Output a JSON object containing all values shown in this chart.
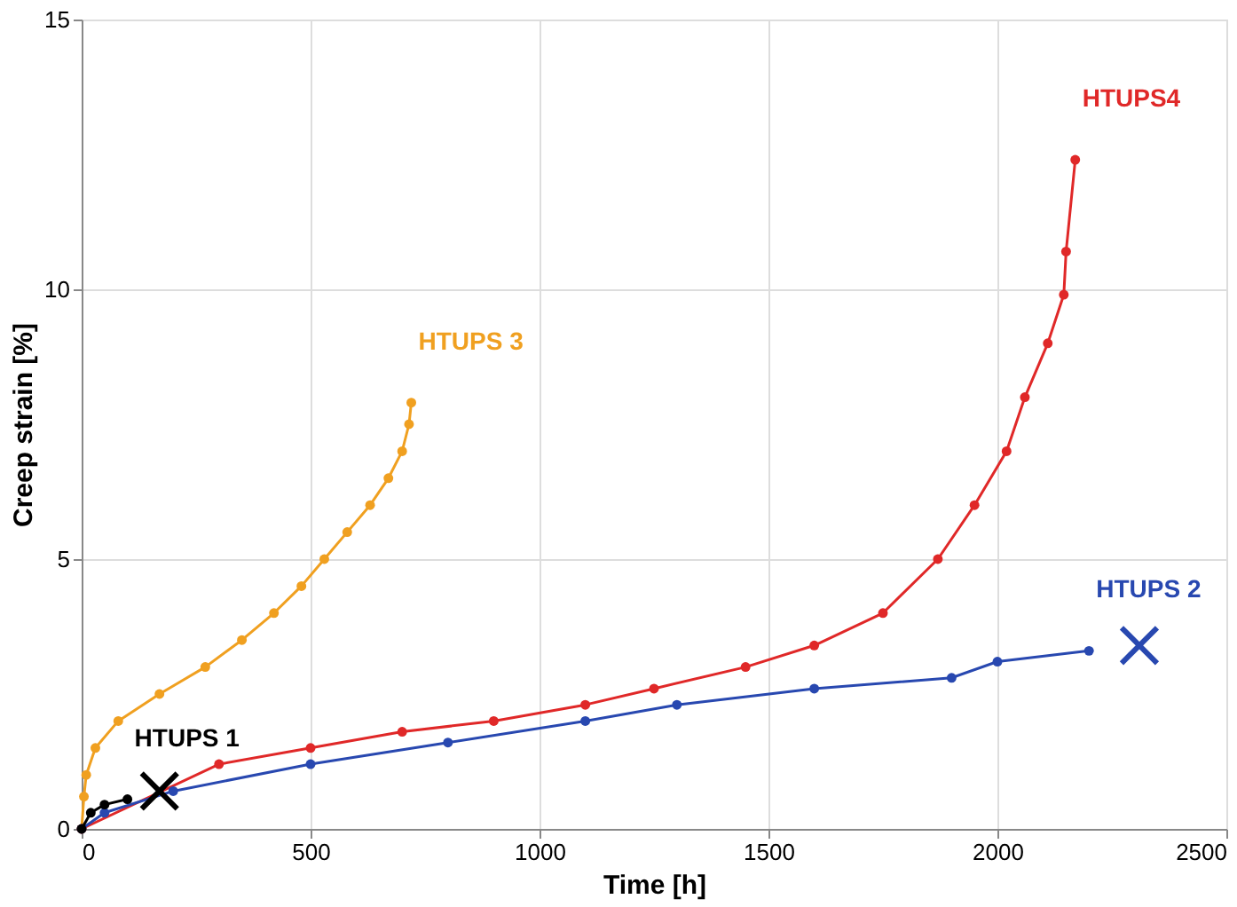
{
  "chart_data": {
    "type": "line",
    "xlabel": "Time [h]",
    "ylabel": "Creep strain [%]",
    "xlim": [
      0,
      2500
    ],
    "ylim": [
      0,
      15
    ],
    "xticks": [
      0,
      500,
      1000,
      1500,
      2000,
      2500
    ],
    "yticks": [
      0,
      5,
      10,
      15
    ],
    "grid": true,
    "marker": "circle",
    "series": [
      {
        "name": "HTUPS 3",
        "color": "#f0a020",
        "x": [
          0,
          5,
          10,
          30,
          80,
          170,
          270,
          350,
          420,
          480,
          530,
          580,
          630,
          670,
          700,
          715,
          720
        ],
        "values": [
          0,
          0.6,
          1.0,
          1.5,
          2.0,
          2.5,
          3.0,
          3.5,
          4.0,
          4.5,
          5.0,
          5.5,
          6.0,
          6.5,
          7.0,
          7.5,
          7.9
        ]
      },
      {
        "name": "HTUPS4",
        "color": "#e02828",
        "x": [
          0,
          300,
          500,
          700,
          900,
          1100,
          1250,
          1450,
          1600,
          1750,
          1870,
          1950,
          2020,
          2060,
          2110,
          2145,
          2150,
          2170
        ],
        "values": [
          0,
          1.2,
          1.5,
          1.8,
          2.0,
          2.3,
          2.6,
          3.0,
          3.4,
          4.0,
          5.0,
          6.0,
          7.0,
          8.0,
          9.0,
          9.9,
          10.7,
          12.4
        ]
      },
      {
        "name": "HTUPS 2",
        "color": "#2848b0",
        "x": [
          0,
          50,
          200,
          500,
          800,
          1100,
          1300,
          1600,
          1900,
          2000,
          2200
        ],
        "values": [
          0,
          0.3,
          0.7,
          1.2,
          1.6,
          2.0,
          2.3,
          2.6,
          2.8,
          3.1,
          3.3
        ]
      },
      {
        "name": "HTUPS 1",
        "color": "#000000",
        "x": [
          0,
          20,
          50,
          100
        ],
        "values": [
          0,
          0.3,
          0.45,
          0.55
        ]
      },
      {
        "type": "scatter",
        "marker": "cross",
        "color": "#000000",
        "x": [
          170
        ],
        "values": [
          0.7
        ]
      },
      {
        "type": "scatter",
        "marker": "cross",
        "color": "#2848b0",
        "x": [
          2310
        ],
        "values": [
          3.4
        ]
      }
    ]
  }
}
